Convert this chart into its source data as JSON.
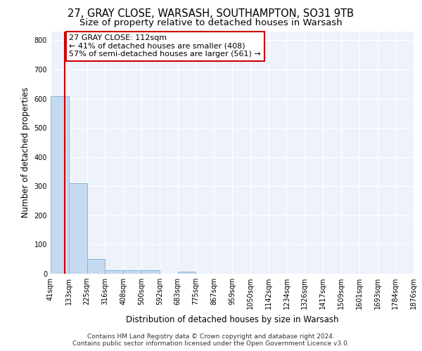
{
  "title1": "27, GRAY CLOSE, WARSASH, SOUTHAMPTON, SO31 9TB",
  "title2": "Size of property relative to detached houses in Warsash",
  "xlabel": "Distribution of detached houses by size in Warsash",
  "ylabel": "Number of detached properties",
  "bin_edges": [
    41,
    133,
    225,
    316,
    408,
    500,
    592,
    683,
    775,
    867,
    959,
    1050,
    1142,
    1234,
    1326,
    1417,
    1509,
    1601,
    1693,
    1784,
    1876
  ],
  "bar_heights": [
    608,
    311,
    50,
    12,
    12,
    12,
    0,
    8,
    0,
    0,
    0,
    0,
    0,
    0,
    0,
    0,
    0,
    0,
    0,
    0
  ],
  "bar_color": "#c5d9f0",
  "bar_edge_color": "#7bafd4",
  "property_size": 112,
  "property_line_color": "#cc0000",
  "annotation_text": "27 GRAY CLOSE: 112sqm\n← 41% of detached houses are smaller (408)\n57% of semi-detached houses are larger (561) →",
  "annotation_box_color": "#ffffff",
  "annotation_box_edge": "#cc0000",
  "ylim": [
    0,
    830
  ],
  "yticks": [
    0,
    100,
    200,
    300,
    400,
    500,
    600,
    700,
    800
  ],
  "background_color": "#edf2fb",
  "grid_color": "#ffffff",
  "footer_line1": "Contains HM Land Registry data © Crown copyright and database right 2024.",
  "footer_line2": "Contains public sector information licensed under the Open Government Licence v3.0.",
  "title1_fontsize": 10.5,
  "title2_fontsize": 9.5,
  "xlabel_fontsize": 8.5,
  "ylabel_fontsize": 8.5,
  "tick_fontsize": 7,
  "footer_fontsize": 6.5,
  "annot_fontsize": 8
}
